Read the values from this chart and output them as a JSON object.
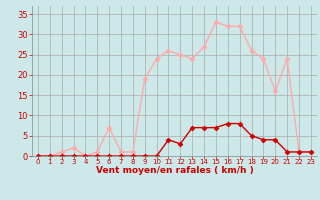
{
  "x": [
    0,
    1,
    2,
    3,
    4,
    5,
    6,
    7,
    8,
    9,
    10,
    11,
    12,
    13,
    14,
    15,
    16,
    17,
    18,
    19,
    20,
    21,
    22,
    23
  ],
  "rafales": [
    0,
    0,
    1,
    2,
    0,
    1,
    7,
    1,
    1,
    19,
    24,
    26,
    25,
    24,
    27,
    33,
    32,
    32,
    26,
    24,
    16,
    24,
    1,
    1
  ],
  "moyen": [
    0,
    0,
    0,
    0,
    0,
    0,
    0,
    0,
    0,
    0,
    0,
    4,
    3,
    7,
    7,
    7,
    8,
    8,
    5,
    4,
    4,
    1,
    1,
    1
  ],
  "color_rafales": "#ffaaaa",
  "color_moyen": "#cc0000",
  "bg_color": "#cce8e8",
  "grid_color": "#aaaaaa",
  "xlabel": "Vent moyen/en rafales ( km/h )",
  "ylabel_ticks": [
    0,
    5,
    10,
    15,
    20,
    25,
    30,
    35
  ],
  "xlim": [
    -0.5,
    23.5
  ],
  "ylim": [
    0,
    37
  ],
  "xlabel_color": "#cc0000",
  "tick_color": "#cc0000",
  "markersize": 2.5,
  "linewidth": 1.0
}
